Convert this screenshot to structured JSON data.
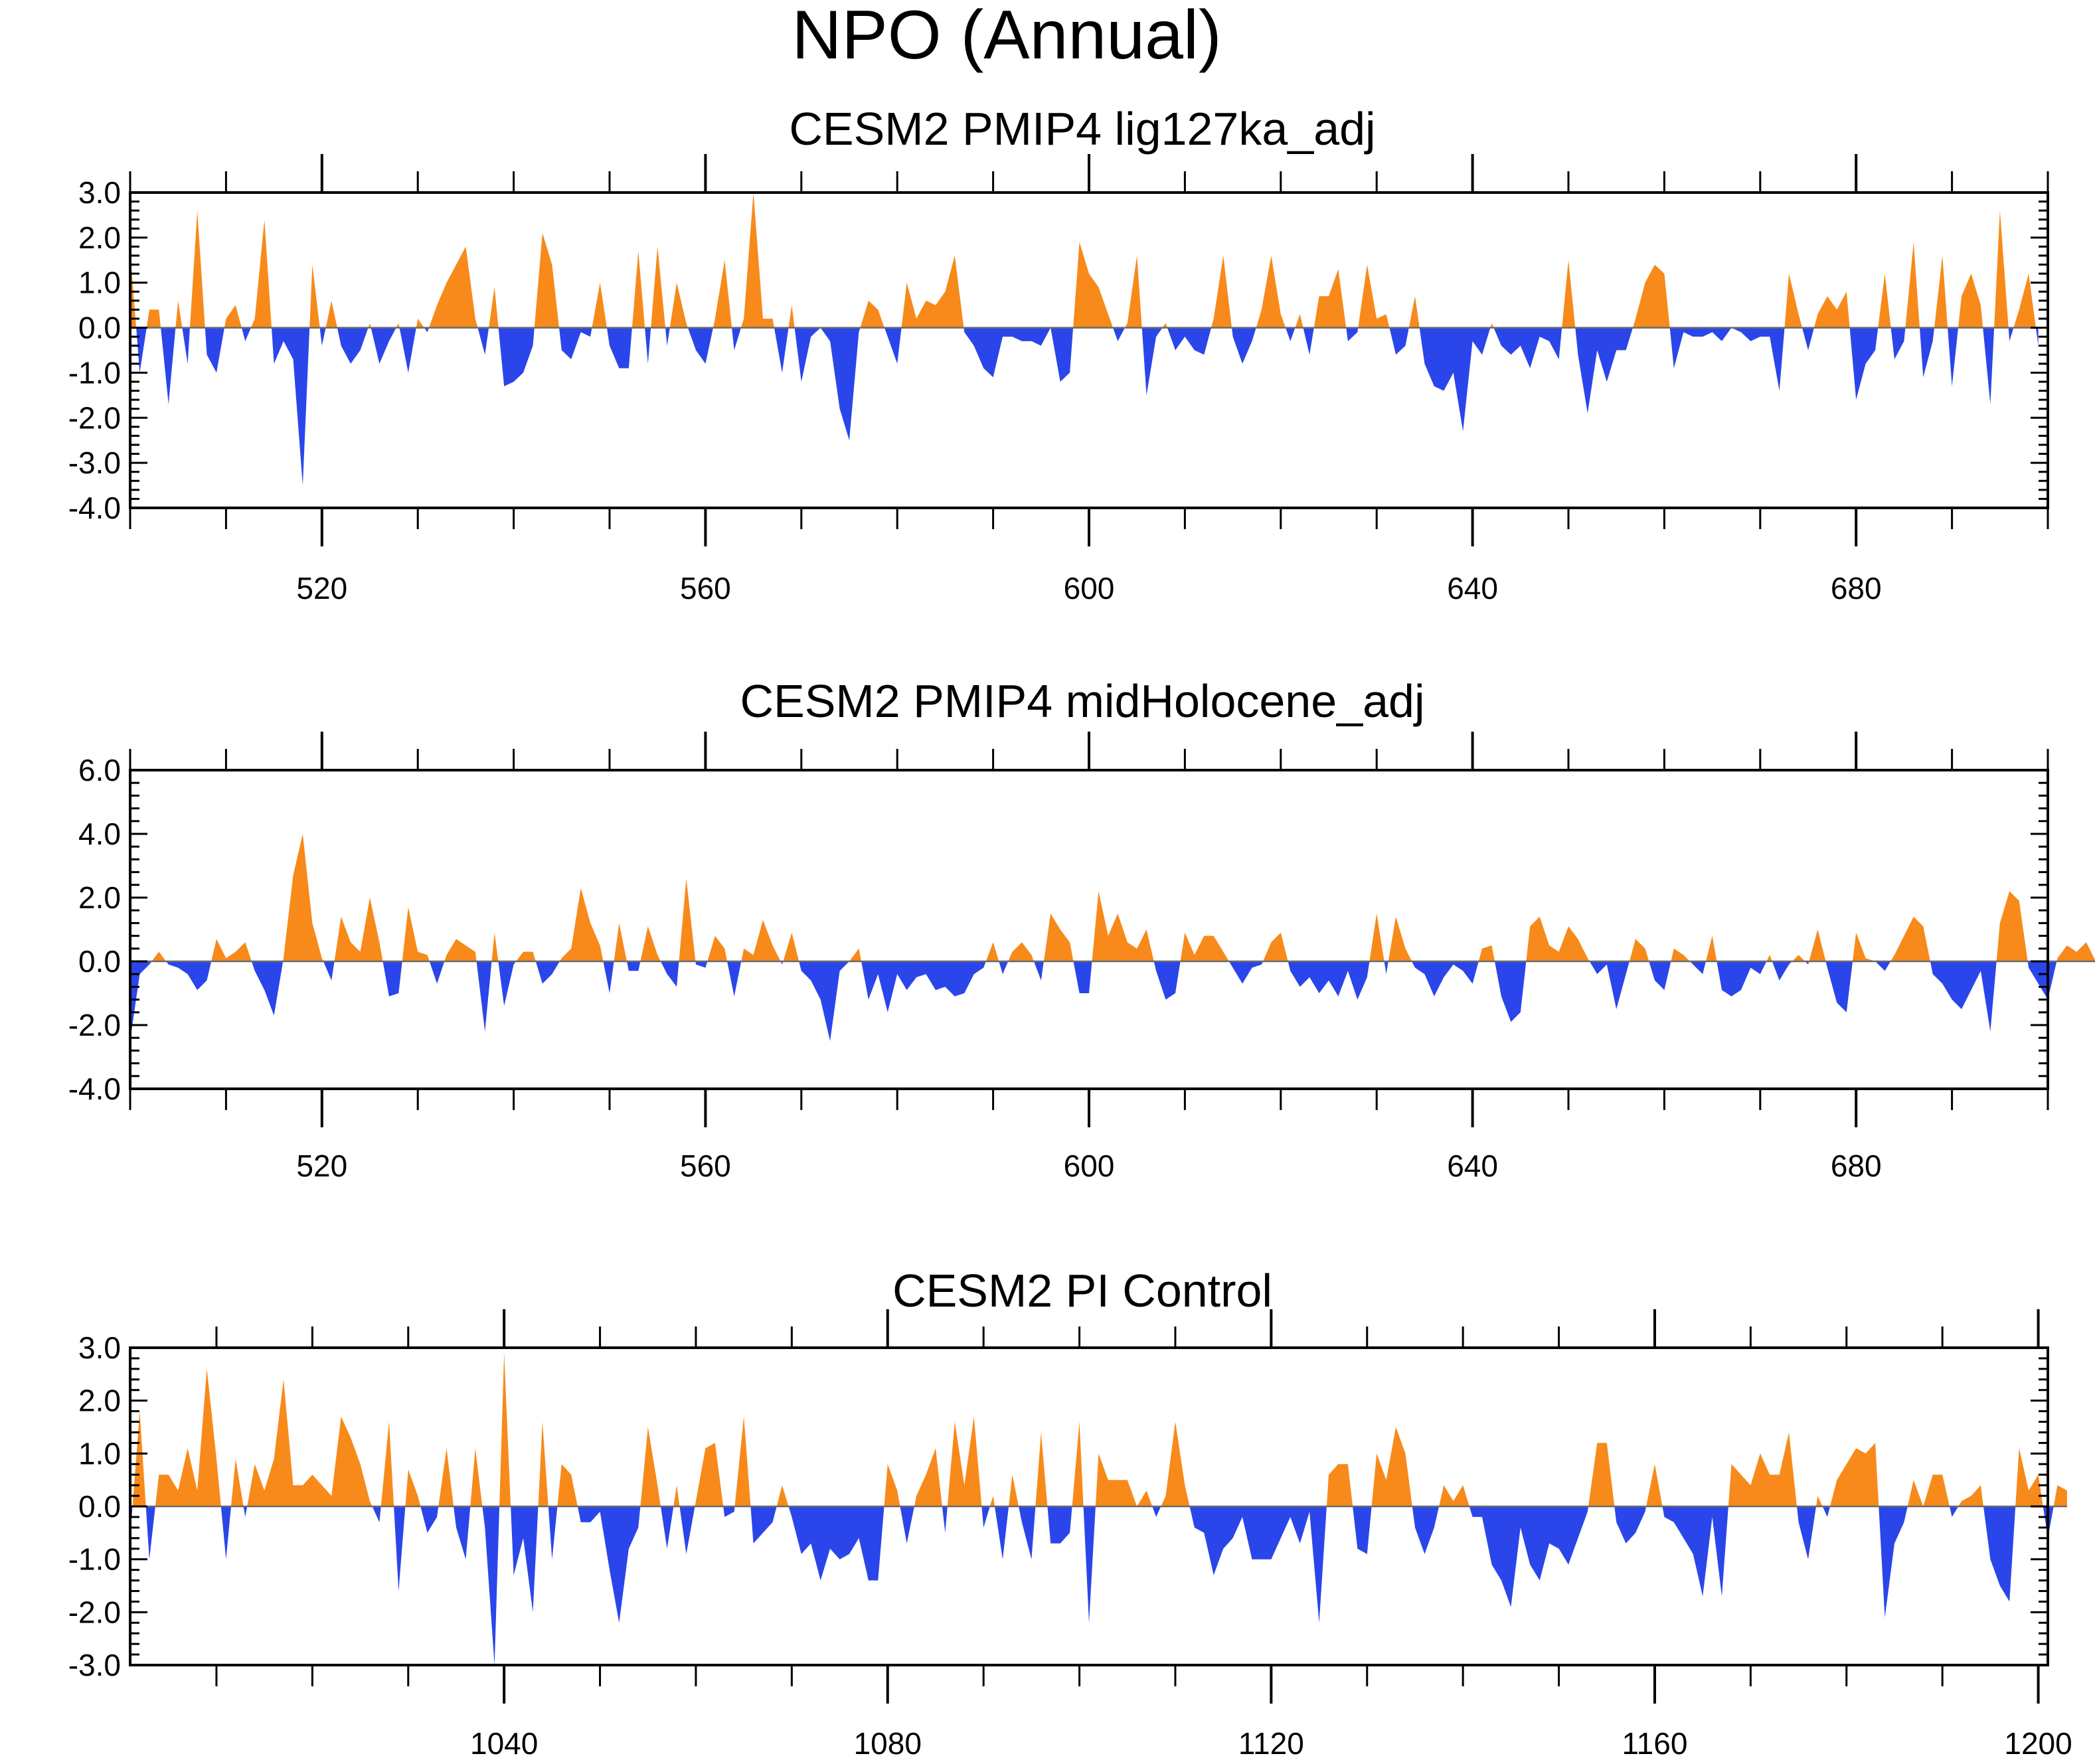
{
  "title": "NPO (Annual)",
  "colors": {
    "positive": "#f78a1a",
    "negative": "#2a46ea",
    "axis": "#000000",
    "zero_line": "#6b6b6b"
  },
  "chart_data": [
    {
      "type": "area",
      "title": "CESM2 PMIP4 lig127ka_adj",
      "xlabel": "",
      "ylabel": "",
      "xlim": [
        500,
        700
      ],
      "ylim": [
        -4,
        3
      ],
      "y_ticks": [
        3,
        2,
        1,
        0,
        -1,
        -2,
        -3,
        -4
      ],
      "y_tick_labels": [
        "3.0",
        "2.0",
        "1.0",
        "0.0",
        "-1.0",
        "-2.0",
        "-3.0",
        "-4.0"
      ],
      "x_ticks": [
        520,
        560,
        600,
        640,
        680
      ],
      "x_tick_labels": [
        "520",
        "560",
        "600",
        "640",
        "680"
      ],
      "x_minor_step": 10,
      "x_start": 500,
      "values": [
        1.7,
        -1.0,
        0.4,
        0.4,
        -1.7,
        0.6,
        -0.8,
        2.6,
        -0.6,
        -1.0,
        0.2,
        0.5,
        -0.3,
        0.2,
        2.4,
        -0.8,
        -0.3,
        -0.7,
        -3.5,
        1.4,
        -0.4,
        0.6,
        -0.4,
        -0.8,
        -0.5,
        0.1,
        -0.8,
        -0.3,
        0.1,
        -1.0,
        0.2,
        -0.1,
        0.5,
        1.0,
        1.4,
        1.8,
        0.2,
        -0.6,
        0.9,
        -1.3,
        -1.2,
        -1.0,
        -0.4,
        2.1,
        1.4,
        -0.5,
        -0.7,
        -0.1,
        -0.2,
        1.0,
        -0.4,
        -0.9,
        -0.9,
        1.7,
        -0.8,
        1.8,
        -0.4,
        1.0,
        0.1,
        -0.5,
        -0.8,
        0.2,
        1.5,
        -0.5,
        0.2,
        3.0,
        0.2,
        0.2,
        -1.0,
        0.5,
        -1.2,
        -0.2,
        0.0,
        -0.3,
        -1.8,
        -2.5,
        -0.1,
        0.6,
        0.4,
        -0.2,
        -0.8,
        1.0,
        0.2,
        0.6,
        0.5,
        0.8,
        1.6,
        -0.1,
        -0.4,
        -0.9,
        -1.1,
        -0.2,
        -0.2,
        -0.3,
        -0.3,
        -0.4,
        0.0,
        -1.2,
        -1.0,
        1.9,
        1.2,
        0.9,
        0.3,
        -0.3,
        0.1,
        1.6,
        -1.5,
        -0.2,
        0.1,
        -0.5,
        -0.2,
        -0.5,
        -0.6,
        0.2,
        1.6,
        -0.2,
        -0.8,
        -0.3,
        0.4,
        1.6,
        0.3,
        -0.3,
        0.3,
        -0.6,
        0.7,
        0.7,
        1.3,
        -0.3,
        -0.1,
        1.4,
        0.2,
        0.3,
        -0.6,
        -0.4,
        0.7,
        -0.8,
        -1.3,
        -1.4,
        -1.0,
        -2.3,
        -0.3,
        -0.6,
        0.1,
        -0.4,
        -0.6,
        -0.4,
        -0.9,
        -0.2,
        -0.3,
        -0.7,
        1.5,
        -0.6,
        -1.9,
        -0.5,
        -1.2,
        -0.5,
        -0.5,
        0.2,
        1.0,
        1.4,
        1.2,
        -0.9,
        -0.1,
        -0.2,
        -0.2,
        -0.1,
        -0.3,
        0.0,
        -0.1,
        -0.3,
        -0.2,
        -0.2,
        -1.4,
        1.2,
        0.3,
        -0.5,
        0.3,
        0.7,
        0.4,
        0.8,
        -1.6,
        -0.8,
        -0.5,
        1.2,
        -0.7,
        -0.3,
        1.9,
        -1.1,
        -0.3,
        1.6,
        -1.3,
        0.7,
        1.2,
        0.5,
        -1.7,
        2.6,
        -0.3,
        0.4,
        1.2,
        -0.4
      ]
    },
    {
      "type": "area",
      "title": "CESM2 PMIP4 midHolocene_adj",
      "xlabel": "",
      "ylabel": "",
      "xlim": [
        500,
        700
      ],
      "ylim": [
        -4,
        6
      ],
      "y_ticks": [
        6,
        4,
        2,
        0,
        -2,
        -4
      ],
      "y_tick_labels": [
        "6.0",
        "4.0",
        "2.0",
        "0.0",
        "-2.0",
        "-4.0"
      ],
      "x_ticks": [
        520,
        560,
        600,
        640,
        680
      ],
      "x_tick_labels": [
        "520",
        "560",
        "600",
        "640",
        "680"
      ],
      "x_minor_step": 10,
      "x_start": 500,
      "values": [
        -2.5,
        -0.4,
        -0.1,
        0.3,
        -0.1,
        -0.2,
        -0.4,
        -0.9,
        -0.6,
        0.7,
        0.1,
        0.3,
        0.6,
        -0.3,
        -0.9,
        -1.7,
        0.1,
        2.7,
        4.0,
        1.2,
        0.1,
        -0.6,
        1.4,
        0.6,
        0.3,
        2.0,
        0.6,
        -1.1,
        -1.0,
        1.7,
        0.3,
        0.2,
        -0.7,
        0.2,
        0.7,
        0.5,
        0.3,
        -2.2,
        0.9,
        -1.4,
        -0.1,
        0.3,
        0.3,
        -0.7,
        -0.4,
        0.1,
        0.4,
        2.3,
        1.2,
        0.5,
        -1.0,
        1.2,
        -0.3,
        -0.3,
        1.1,
        0.2,
        -0.4,
        -0.8,
        2.6,
        -0.1,
        -0.2,
        0.8,
        0.4,
        -1.1,
        0.4,
        0.2,
        1.3,
        0.5,
        -0.1,
        0.9,
        -0.3,
        -0.6,
        -1.2,
        -2.5,
        -0.3,
        0.0,
        0.4,
        -1.2,
        -0.4,
        -1.6,
        -0.4,
        -0.9,
        -0.5,
        -0.4,
        -0.9,
        -0.8,
        -1.1,
        -1.0,
        -0.4,
        -0.2,
        0.6,
        -0.4,
        0.3,
        0.6,
        0.2,
        -0.6,
        1.5,
        1.0,
        0.6,
        -1.0,
        -1.0,
        2.2,
        0.8,
        1.5,
        0.6,
        0.4,
        1.0,
        -0.3,
        -1.2,
        -1.0,
        0.9,
        0.2,
        0.8,
        0.8,
        0.3,
        -0.2,
        -0.7,
        -0.2,
        -0.1,
        0.6,
        0.9,
        -0.3,
        -0.8,
        -0.5,
        -1.0,
        -0.6,
        -1.1,
        -0.3,
        -1.2,
        -0.5,
        1.5,
        -0.4,
        1.4,
        0.4,
        -0.2,
        -0.4,
        -1.1,
        -0.5,
        -0.1,
        -0.3,
        -0.7,
        0.4,
        0.5,
        -1.1,
        -1.9,
        -1.6,
        1.1,
        1.4,
        0.5,
        0.3,
        1.1,
        0.7,
        0.1,
        -0.4,
        -0.1,
        -1.5,
        -0.4,
        0.7,
        0.4,
        -0.6,
        -0.9,
        0.4,
        0.2,
        -0.1,
        -0.4,
        0.8,
        -0.9,
        -1.1,
        -0.9,
        -0.2,
        -0.4,
        0.2,
        -0.6,
        -0.1,
        0.2,
        -0.1,
        1.0,
        -0.2,
        -1.3,
        -1.6,
        0.9,
        0.1,
        0.0,
        -0.3,
        0.2,
        0.8,
        1.4,
        1.1,
        -0.4,
        -0.7,
        -1.2,
        -1.5,
        -0.9,
        -0.3,
        -2.2,
        1.2,
        2.2,
        1.9,
        -0.2,
        -0.7,
        -1.2,
        0.1,
        0.5,
        0.3,
        0.6,
        0.0,
        -0.3,
        -0.3,
        0.3,
        -0.4
      ]
    },
    {
      "type": "area",
      "title": "CESM2 PI Control",
      "xlabel": "",
      "ylabel": "",
      "xlim": [
        1001,
        1201
      ],
      "ylim": [
        -3,
        3
      ],
      "y_ticks": [
        3,
        2,
        1,
        0,
        -1,
        -2,
        -3
      ],
      "y_tick_labels": [
        "3.0",
        "2.0",
        "1.0",
        "0.0",
        "-1.0",
        "-2.0",
        "-3.0"
      ],
      "x_ticks": [
        1040,
        1080,
        1120,
        1160,
        1200
      ],
      "x_tick_labels": [
        "1040",
        "1080",
        "1120",
        "1160",
        "1200"
      ],
      "x_minor_step": 10,
      "x_start": 1001,
      "values": [
        -0.6,
        1.8,
        -1.0,
        0.6,
        0.6,
        0.3,
        1.1,
        0.3,
        2.6,
        0.9,
        -1.0,
        0.9,
        -0.2,
        0.8,
        0.3,
        0.9,
        2.4,
        0.4,
        0.4,
        0.6,
        0.4,
        0.2,
        1.7,
        1.3,
        0.8,
        0.1,
        -0.3,
        1.6,
        -1.6,
        0.7,
        0.2,
        -0.5,
        -0.2,
        1.1,
        -0.4,
        -1.0,
        1.1,
        -0.4,
        -3.0,
        2.9,
        -1.3,
        -0.6,
        -2.0,
        1.6,
        -1.0,
        0.8,
        0.6,
        -0.3,
        -0.3,
        -0.1,
        -1.2,
        -2.2,
        -0.8,
        -0.4,
        1.5,
        0.4,
        -0.8,
        0.4,
        -0.9,
        0.1,
        1.1,
        1.2,
        -0.2,
        -0.1,
        1.7,
        -0.7,
        -0.5,
        -0.3,
        0.4,
        -0.2,
        -0.9,
        -0.7,
        -1.4,
        -0.8,
        -1.0,
        -0.9,
        -0.6,
        -1.4,
        -1.4,
        0.8,
        0.3,
        -0.7,
        0.2,
        0.6,
        1.1,
        -0.5,
        1.6,
        0.4,
        1.7,
        -0.4,
        0.2,
        -1.0,
        0.6,
        -0.3,
        -1.0,
        1.4,
        -0.7,
        -0.7,
        -0.5,
        1.6,
        -2.2,
        1.0,
        0.5,
        0.5,
        0.5,
        0.0,
        0.3,
        -0.2,
        0.2,
        1.6,
        0.4,
        -0.4,
        -0.5,
        -1.3,
        -0.8,
        -0.6,
        -0.2,
        -1.0,
        -1.0,
        -1.0,
        -0.6,
        -0.2,
        -0.7,
        -0.1,
        -2.2,
        0.6,
        0.8,
        0.8,
        -0.8,
        -0.9,
        1.0,
        0.5,
        1.5,
        1.0,
        -0.4,
        -0.9,
        -0.4,
        0.4,
        0.1,
        0.4,
        -0.2,
        -0.2,
        -1.1,
        -1.4,
        -1.9,
        -0.4,
        -1.1,
        -1.4,
        -0.7,
        -0.8,
        -1.1,
        -0.6,
        -0.1,
        1.2,
        1.2,
        -0.3,
        -0.7,
        -0.5,
        -0.1,
        0.8,
        -0.2,
        -0.3,
        -0.6,
        -0.9,
        -1.7,
        -0.2,
        -1.7,
        0.8,
        0.6,
        0.4,
        1.0,
        0.6,
        0.6,
        1.4,
        -0.3,
        -1.0,
        0.2,
        -0.2,
        0.5,
        0.8,
        1.1,
        1.0,
        1.2,
        -2.1,
        -0.7,
        -0.3,
        0.5,
        0.0,
        0.6,
        0.6,
        -0.2,
        0.1,
        0.2,
        0.4,
        -1.0,
        -1.5,
        -1.8,
        1.1,
        0.3,
        0.6,
        -0.6,
        0.4,
        0.3
      ]
    }
  ]
}
